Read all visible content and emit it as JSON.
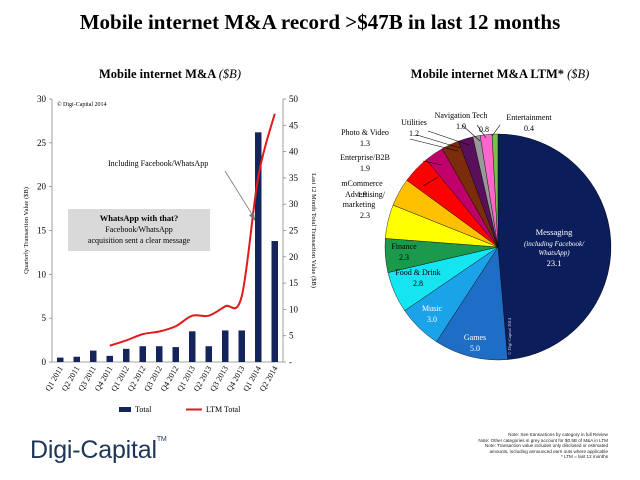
{
  "title": "Mobile internet M&A record >$47B in last 12 months",
  "left_chart_title": "Mobile internet M&A",
  "left_chart_unit": "($B)",
  "right_chart_title": "Mobile internet M&A LTM*",
  "right_chart_unit": "($B)",
  "copyright_left": "© Digi-Capital 2014",
  "copyright_pie": "© Digi-Capital 2014",
  "annotation_arrow": "Including Facebook/WhatsApp",
  "callout": {
    "title": "WhatsApp with that?",
    "line1": "Facebook/WhatsApp",
    "line2": "acquisition sent a clear message"
  },
  "logo": "Digi-Capital",
  "logo_mark": "TM",
  "notes": [
    "Note: See transactions by category in full Review",
    "Note: Other categories in grey account for $0.5B of M&A in LTM",
    "Note: Transaction value includes only disclosed or estimated",
    "amounts, including announced earn outs where applicable",
    "* LTM = last 12 months"
  ],
  "colors": {
    "bar": "#16245c",
    "line": "#e31a1c",
    "callout_bg": "#d9d9d9"
  },
  "chart_data": [
    {
      "type": "bar",
      "categories": [
        "Q1 2011",
        "Q2 2011",
        "Q3 2011",
        "Q4 2011",
        "Q1 2012",
        "Q2 2012",
        "Q3 2012",
        "Q4 2012",
        "Q1 2013",
        "Q2 2013",
        "Q3 2013",
        "Q4 2013",
        "Q1 2014",
        "Q2 2014"
      ],
      "series": [
        {
          "name": "Total",
          "axis": "left",
          "type": "bar",
          "values": [
            0.5,
            0.6,
            1.3,
            0.7,
            1.5,
            1.8,
            1.8,
            1.7,
            3.5,
            1.8,
            3.6,
            3.6,
            26.2,
            13.8
          ]
        },
        {
          "name": "LTM Total",
          "axis": "right",
          "type": "line",
          "values": [
            null,
            null,
            null,
            3.1,
            4.1,
            5.3,
            5.8,
            6.8,
            8.8,
            8.8,
            10.6,
            12.5,
            35.2,
            47.2
          ]
        }
      ],
      "ylabel": "Quarterly Transaction Value ($B)",
      "ylabel_right": "Last 12 Month Total Transaction Value ($B)",
      "ylim": [
        0,
        30
      ],
      "ylim_right": [
        0,
        50
      ],
      "yticks": [
        "0",
        "5",
        "10",
        "15",
        "20",
        "25",
        "30"
      ],
      "yticks_right": [
        "-",
        "5",
        "10",
        "15",
        "20",
        "25",
        "30",
        "35",
        "40",
        "45",
        "50"
      ],
      "legend": "bottom"
    },
    {
      "type": "pie",
      "slices": [
        {
          "label": "Messaging",
          "note": "(including Facebook/ WhatsApp)",
          "value": 23.1,
          "value_label": "23.1",
          "color": "#0b1e5b"
        },
        {
          "label": "Games",
          "value": 5.0,
          "value_label": "5.0",
          "color": "#1f6ec6"
        },
        {
          "label": "Music",
          "value": 3.0,
          "value_label": "3.0",
          "color": "#1aa3e8"
        },
        {
          "label": "Food & Drink",
          "value": 2.8,
          "value_label": "2.8",
          "color": "#15e5f0"
        },
        {
          "label": "Finance",
          "value": 2.3,
          "value_label": "2.3",
          "color": "#1a9a4a"
        },
        {
          "label": "Advertising/ marketing",
          "value": 2.3,
          "value_label": "2.3",
          "color": "#ffff00"
        },
        {
          "label": "mCommerce",
          "value": 1.9,
          "value_label": "1.9",
          "color": "#ffc000"
        },
        {
          "label": "Enterprise/B2B",
          "value": 1.9,
          "value_label": "1.9",
          "color": "#ff0000"
        },
        {
          "label": "Photo & Video",
          "value": 1.3,
          "value_label": "1.3",
          "color": "#c0006a"
        },
        {
          "label": "Utilities",
          "value": 1.2,
          "value_label": "1.2",
          "color": "#7b2c0a"
        },
        {
          "label": "Navigation Tech",
          "value": 1.0,
          "value_label": "1.0",
          "color": "#5a0f5a"
        },
        {
          "label": "",
          "value": 0.5,
          "value_label": "",
          "color": "#999999"
        },
        {
          "label": "",
          "value": 0.8,
          "value_label": "0.8",
          "color": "#ff66cc"
        },
        {
          "label": "Entertainment",
          "value": 0.4,
          "value_label": "0.4",
          "color": "#7ac143"
        }
      ]
    }
  ]
}
